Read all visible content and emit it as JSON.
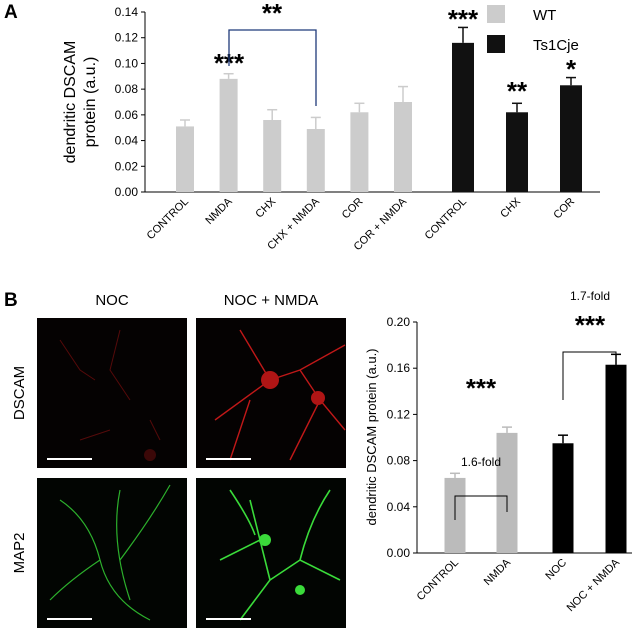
{
  "chart_data": [
    {
      "type": "bar",
      "panel": "A",
      "ylabel": [
        "dendritic DSCAM",
        "protein (a.u.)"
      ],
      "ylim": [
        0,
        0.14
      ],
      "yticks": [
        {
          "value": 0,
          "label": "0.00"
        },
        0.02,
        0.04,
        0.06,
        0.08,
        {
          "value": 0.1,
          "label": "0.10"
        },
        0.12,
        0.14
      ],
      "legend": "top-right",
      "series": [
        {
          "name": "WT",
          "color": "#cccccc",
          "categories": [
            "CONTROL",
            "NMDA",
            "CHX",
            "CHX + NMDA",
            "COR",
            "COR + NMDA"
          ],
          "values": [
            0.051,
            0.088,
            0.056,
            0.049,
            0.062,
            0.07
          ],
          "errors": [
            0.005,
            0.004,
            0.008,
            0.009,
            0.007,
            0.012
          ]
        },
        {
          "name": "Ts1Cje",
          "color": "#111111",
          "categories": [
            "CONTROL",
            "CHX",
            "COR"
          ],
          "values": [
            0.116,
            0.062,
            0.083
          ],
          "errors": [
            0.012,
            0.007,
            0.006
          ]
        }
      ],
      "annotations": [
        {
          "text": "***",
          "color": "#aaaaaa"
        },
        {
          "text": "**",
          "color": "#1f3a7a"
        },
        {
          "text": "***",
          "color": "#aaaaaa"
        },
        {
          "text": "**",
          "color": "#111111"
        },
        {
          "text": "*",
          "color": "#111111"
        }
      ]
    },
    {
      "type": "bar",
      "panel": "B",
      "image_columns": [
        "NOC",
        "NOC + NMDA"
      ],
      "image_rows": [
        "DSCAM",
        "MAP2"
      ],
      "ylabel": "dendritic DSCAM protein (a.u.)",
      "ylim": [
        0,
        0.2
      ],
      "yticks": [
        {
          "value": 0,
          "label": "0.00"
        },
        0.04,
        0.08,
        0.12,
        0.16,
        {
          "value": 0.2,
          "label": "0.20"
        }
      ],
      "categories": [
        "CONTROL",
        "NMDA",
        "NOC",
        "NOC + NMDA"
      ],
      "values": [
        0.065,
        0.104,
        0.095,
        0.163
      ],
      "errors": [
        0.004,
        0.005,
        0.007,
        0.009
      ],
      "colors": [
        "#bbbbbb",
        "#bbbbbb",
        "#000000",
        "#000000"
      ],
      "annotations": [
        {
          "text": "1.6-fold",
          "color": "#000000"
        },
        {
          "text": "***",
          "color": "#000000"
        },
        {
          "text": "1.7-fold",
          "color": "#000000"
        },
        {
          "text": "***",
          "color": "#000000"
        }
      ]
    }
  ]
}
